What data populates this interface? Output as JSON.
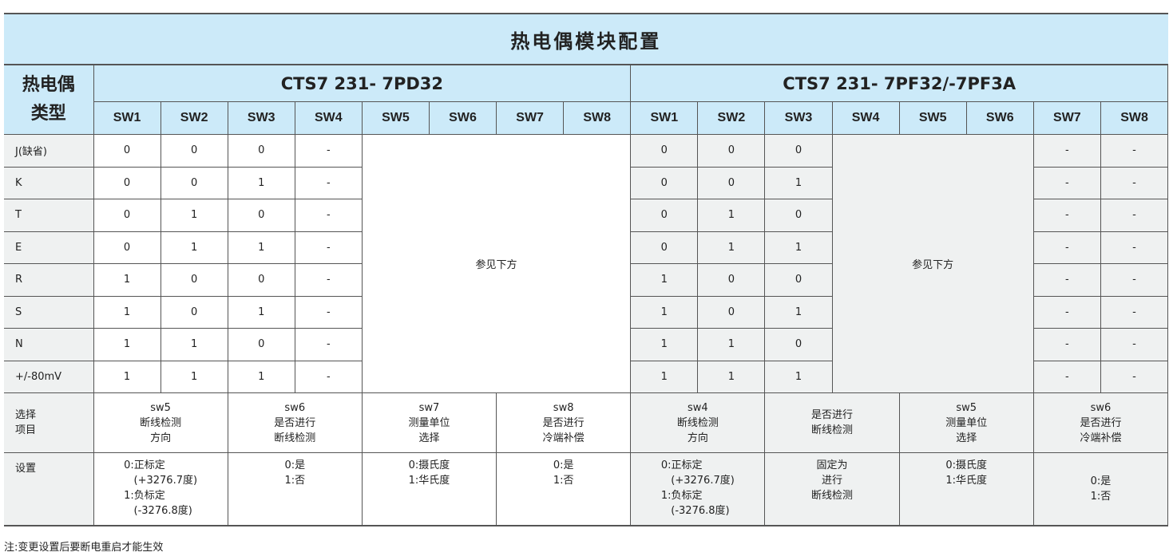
{
  "title": "热电偶模块配置",
  "type_header": [
    "热电偶",
    "类型"
  ],
  "left_model": "CTS7 231- 7PD32",
  "right_model": "CTS7 231- 7PF32/-7PF3A",
  "left_sw": [
    "SW1",
    "SW2",
    "SW3",
    "SW4",
    "SW5",
    "SW6",
    "SW7",
    "SW8"
  ],
  "right_sw": [
    "SW1",
    "SW2",
    "SW3",
    "SW4",
    "SW5",
    "SW6",
    "SW7",
    "SW8"
  ],
  "see_below": "参见下方",
  "rows": [
    {
      "type": "J(缺省)",
      "l": [
        "0",
        "0",
        "0",
        "-"
      ],
      "r": [
        "0",
        "0",
        "0"
      ],
      "r2": [
        "-",
        "-"
      ]
    },
    {
      "type": "K",
      "l": [
        "0",
        "0",
        "1",
        "-"
      ],
      "r": [
        "0",
        "0",
        "1"
      ],
      "r2": [
        "-",
        "-"
      ]
    },
    {
      "type": "T",
      "l": [
        "0",
        "1",
        "0",
        "-"
      ],
      "r": [
        "0",
        "1",
        "0"
      ],
      "r2": [
        "-",
        "-"
      ]
    },
    {
      "type": "E",
      "l": [
        "0",
        "1",
        "1",
        "-"
      ],
      "r": [
        "0",
        "1",
        "1"
      ],
      "r2": [
        "-",
        "-"
      ]
    },
    {
      "type": "R",
      "l": [
        "1",
        "0",
        "0",
        "-"
      ],
      "r": [
        "1",
        "0",
        "0"
      ],
      "r2": [
        "-",
        "-"
      ]
    },
    {
      "type": "S",
      "l": [
        "1",
        "0",
        "1",
        "-"
      ],
      "r": [
        "1",
        "0",
        "1"
      ],
      "r2": [
        "-",
        "-"
      ]
    },
    {
      "type": "N",
      "l": [
        "1",
        "1",
        "0",
        "-"
      ],
      "r": [
        "1",
        "1",
        "0"
      ],
      "r2": [
        "-",
        "-"
      ]
    },
    {
      "type": "+/-80mV",
      "l": [
        "1",
        "1",
        "1",
        "-"
      ],
      "r": [
        "1",
        "1",
        "1"
      ],
      "r2": [
        "-",
        "-"
      ]
    }
  ],
  "select_label": "选择\n项目",
  "settings_label": "设置",
  "left_select": [
    "sw5\n断线检测\n方向",
    "sw6\n是否进行\n断线检测",
    "sw7\n测量单位\n选择",
    "sw8\n是否进行\n冷端补偿"
  ],
  "right_select": [
    "sw4\n断线检测\n方向",
    "是否进行\n断线检测",
    "sw5\n测量单位\n选择",
    "sw6\n是否进行\n冷端补偿"
  ],
  "left_settings": [
    "0:正标定\n   (+3276.7度)\n1:负标定\n   (-3276.8度)",
    "0:是\n1:否",
    "0:摄氏度\n1:华氏度",
    "0:是\n1:否"
  ],
  "right_settings": [
    "0:正标定\n   (+3276.7度)\n1:负标定\n   (-3276.8度)",
    "固定为\n进行\n断线检测",
    "0:摄氏度\n1:华氏度",
    "0:是\n1:否"
  ],
  "note": "注:变更设置后要断电重启才能生效",
  "colors": {
    "header_bg": "#cceaf9",
    "label_bg": "#eff1f1",
    "border": "#555555"
  }
}
